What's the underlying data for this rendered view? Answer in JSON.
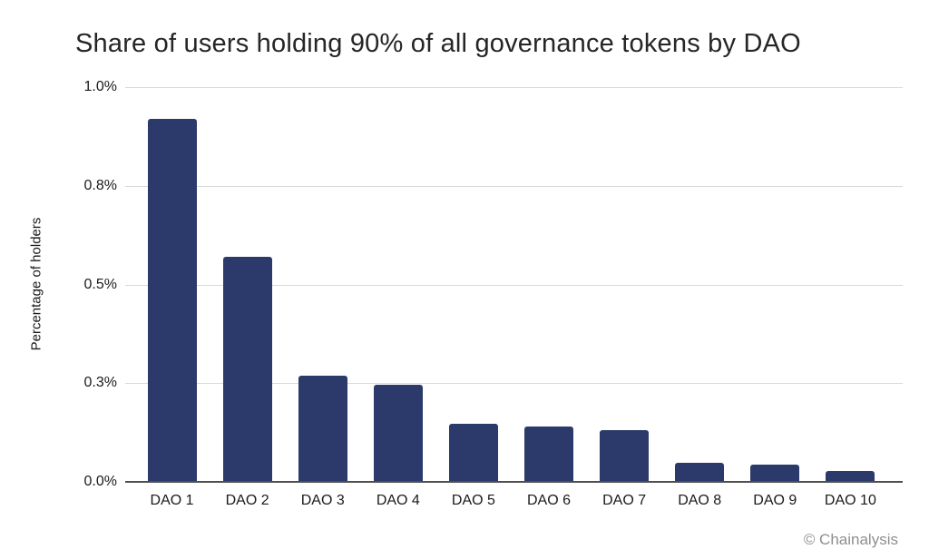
{
  "chart_data": {
    "type": "bar",
    "title": "Share of users holding 90% of all governance tokens by DAO",
    "xlabel": "",
    "ylabel": "Percentage of holders",
    "categories": [
      "DAO 1",
      "DAO 2",
      "DAO 3",
      "DAO 4",
      "DAO 5",
      "DAO 6",
      "DAO 7",
      "DAO 8",
      "DAO 9",
      "DAO 10"
    ],
    "values": [
      0.92,
      0.57,
      0.27,
      0.245,
      0.147,
      0.14,
      0.132,
      0.048,
      0.043,
      0.028
    ],
    "unit": "%",
    "ylim": [
      0,
      1.0
    ],
    "yticks": [
      {
        "value": 0.0,
        "label": "0.0%"
      },
      {
        "value": 0.25,
        "label": "0.3%"
      },
      {
        "value": 0.5,
        "label": "0.5%"
      },
      {
        "value": 0.75,
        "label": "0.8%"
      },
      {
        "value": 1.0,
        "label": "1.0%"
      }
    ],
    "grid": true,
    "legend": false,
    "bar_color": "#2b3a6a"
  },
  "attribution": "© Chainalysis",
  "colors": {
    "bar": "#2b3a6a",
    "gridline": "#d9d9d9",
    "axis_line": "#4f4f4f",
    "title_text": "#262626",
    "tick_text": "#1a1a1a",
    "attribution_text": "#8f8f8f",
    "background": "#ffffff"
  }
}
